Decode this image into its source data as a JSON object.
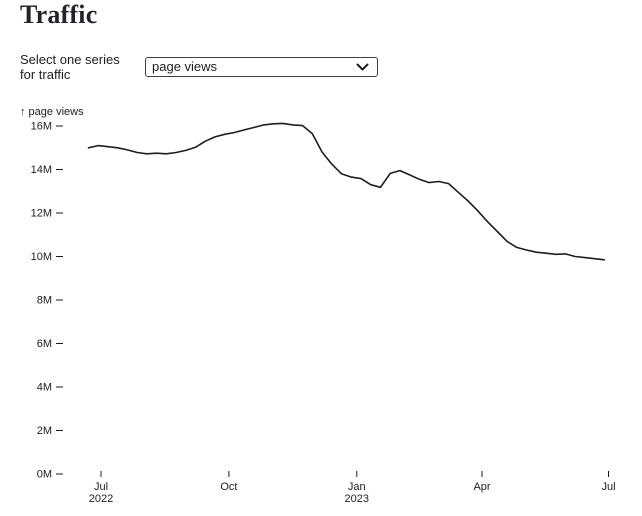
{
  "title": "Traffic",
  "selector": {
    "label": "Select one series for traffic",
    "selected": "page views"
  },
  "chart_data": {
    "type": "line",
    "title": "Traffic",
    "xlabel": "",
    "ylabel": "↑ page views",
    "x_origin": "2022-07-01",
    "x_range": [
      "2022-06-22",
      "2023-06-28"
    ],
    "ylim_millions": [
      0,
      16
    ],
    "grid": false,
    "legend": "none",
    "line_color": "#1b1e23",
    "text_color": "#1b1e23",
    "yticks": [
      {
        "value": 0,
        "label": "0M"
      },
      {
        "value": 2,
        "label": "2M"
      },
      {
        "value": 4,
        "label": "4M"
      },
      {
        "value": 6,
        "label": "6M"
      },
      {
        "value": 8,
        "label": "8M"
      },
      {
        "value": 10,
        "label": "10M"
      },
      {
        "value": 12,
        "label": "12M"
      },
      {
        "value": 14,
        "label": "14M"
      },
      {
        "value": 16,
        "label": "16M"
      }
    ],
    "xticks": [
      {
        "date": "2022-07-01",
        "line1": "Jul",
        "line2": "2022"
      },
      {
        "date": "2022-10-01",
        "line1": "Oct",
        "line2": ""
      },
      {
        "date": "2023-01-01",
        "line1": "Jan",
        "line2": "2023"
      },
      {
        "date": "2023-04-01",
        "line1": "Apr",
        "line2": ""
      },
      {
        "date": "2023-07-01",
        "line1": "Jul",
        "line2": ""
      }
    ],
    "series": [
      {
        "name": "page views",
        "unit": "millions",
        "points": [
          {
            "date": "2022-06-22",
            "value": 15.0
          },
          {
            "date": "2022-06-29",
            "value": 15.1
          },
          {
            "date": "2022-07-06",
            "value": 15.05
          },
          {
            "date": "2022-07-13",
            "value": 15.0
          },
          {
            "date": "2022-07-20",
            "value": 14.9
          },
          {
            "date": "2022-07-27",
            "value": 14.78
          },
          {
            "date": "2022-08-03",
            "value": 14.72
          },
          {
            "date": "2022-08-10",
            "value": 14.75
          },
          {
            "date": "2022-08-17",
            "value": 14.72
          },
          {
            "date": "2022-08-24",
            "value": 14.78
          },
          {
            "date": "2022-08-31",
            "value": 14.88
          },
          {
            "date": "2022-09-07",
            "value": 15.02
          },
          {
            "date": "2022-09-14",
            "value": 15.3
          },
          {
            "date": "2022-09-21",
            "value": 15.5
          },
          {
            "date": "2022-09-28",
            "value": 15.62
          },
          {
            "date": "2022-10-05",
            "value": 15.7
          },
          {
            "date": "2022-10-12",
            "value": 15.82
          },
          {
            "date": "2022-10-19",
            "value": 15.93
          },
          {
            "date": "2022-10-26",
            "value": 16.05
          },
          {
            "date": "2022-11-02",
            "value": 16.1
          },
          {
            "date": "2022-11-09",
            "value": 16.12
          },
          {
            "date": "2022-11-16",
            "value": 16.05
          },
          {
            "date": "2022-11-23",
            "value": 16.02
          },
          {
            "date": "2022-11-30",
            "value": 15.65
          },
          {
            "date": "2022-12-07",
            "value": 14.8
          },
          {
            "date": "2022-12-14",
            "value": 14.25
          },
          {
            "date": "2022-12-21",
            "value": 13.8
          },
          {
            "date": "2022-12-28",
            "value": 13.65
          },
          {
            "date": "2023-01-04",
            "value": 13.58
          },
          {
            "date": "2023-01-11",
            "value": 13.3
          },
          {
            "date": "2023-01-18",
            "value": 13.18
          },
          {
            "date": "2023-01-25",
            "value": 13.82
          },
          {
            "date": "2023-02-01",
            "value": 13.95
          },
          {
            "date": "2023-02-08",
            "value": 13.75
          },
          {
            "date": "2023-02-15",
            "value": 13.55
          },
          {
            "date": "2023-02-22",
            "value": 13.4
          },
          {
            "date": "2023-03-01",
            "value": 13.45
          },
          {
            "date": "2023-03-08",
            "value": 13.35
          },
          {
            "date": "2023-03-15",
            "value": 12.95
          },
          {
            "date": "2023-03-22",
            "value": 12.55
          },
          {
            "date": "2023-03-29",
            "value": 12.1
          },
          {
            "date": "2023-04-05",
            "value": 11.6
          },
          {
            "date": "2023-04-12",
            "value": 11.15
          },
          {
            "date": "2023-04-19",
            "value": 10.7
          },
          {
            "date": "2023-04-26",
            "value": 10.42
          },
          {
            "date": "2023-05-03",
            "value": 10.3
          },
          {
            "date": "2023-05-10",
            "value": 10.2
          },
          {
            "date": "2023-05-17",
            "value": 10.15
          },
          {
            "date": "2023-05-24",
            "value": 10.1
          },
          {
            "date": "2023-05-31",
            "value": 10.12
          },
          {
            "date": "2023-06-07",
            "value": 10.0
          },
          {
            "date": "2023-06-14",
            "value": 9.95
          },
          {
            "date": "2023-06-21",
            "value": 9.9
          },
          {
            "date": "2023-06-28",
            "value": 9.85
          }
        ]
      }
    ]
  }
}
